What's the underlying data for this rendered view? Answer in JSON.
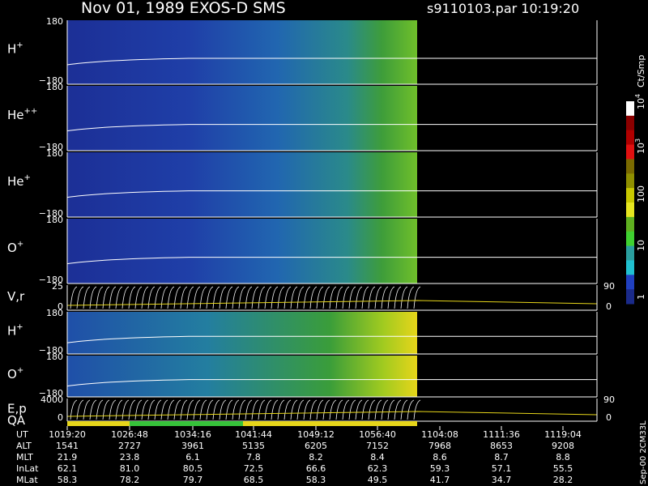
{
  "header": {
    "title": "Nov 01, 1989    EXOS-D SMS",
    "file": "s9110103.par  10:19:20"
  },
  "panels": [
    {
      "label": "H",
      "sup": "+",
      "top": "180",
      "bottom": "−180"
    },
    {
      "label": "He",
      "sup": "++",
      "top": "180",
      "bottom": "−180"
    },
    {
      "label": "He",
      "sup": "+",
      "top": "180",
      "bottom": "−180"
    },
    {
      "label": "O",
      "sup": "+",
      "top": "180",
      "bottom": "−180"
    },
    {
      "label": "V,r",
      "top": "25",
      "bottom": "0",
      "right_top": "90",
      "right_bottom": "0"
    },
    {
      "label": "H",
      "sup": "+",
      "top": "180",
      "bottom": "−180"
    },
    {
      "label": "O",
      "sup": "+",
      "top": "180",
      "bottom": "−180"
    },
    {
      "label": "E,p",
      "top": "4000",
      "bottom": "0",
      "right_top": "90",
      "right_bottom": "0"
    }
  ],
  "qa_label": "QA",
  "colorbar": {
    "unit": "Ct/Smp",
    "labels": [
      {
        "base": "10",
        "exp": "4"
      },
      {
        "base": "10",
        "exp": "3"
      },
      {
        "base": "100"
      },
      {
        "base": "10"
      },
      {
        "base": "1"
      }
    ]
  },
  "table": {
    "rows": [
      {
        "label": "UT",
        "values": [
          "1019:20",
          "1026:48",
          "1034:16",
          "1041:44",
          "1049:12",
          "1056:40",
          "1104:08",
          "1111:36",
          "1119:04"
        ]
      },
      {
        "label": "ALT",
        "values": [
          "1541",
          "2727",
          "3961",
          "5135",
          "6205",
          "7152",
          "7968",
          "8653",
          "9208"
        ]
      },
      {
        "label": "MLT",
        "values": [
          "21.9",
          "23.8",
          "6.1",
          "7.8",
          "8.2",
          "8.4",
          "8.6",
          "8.7",
          "8.8"
        ]
      },
      {
        "label": "InLat",
        "values": [
          "62.1",
          "81.0",
          "80.5",
          "72.5",
          "66.6",
          "62.3",
          "59.3",
          "57.1",
          "55.5"
        ]
      },
      {
        "label": "MLat",
        "values": [
          "58.3",
          "78.2",
          "79.7",
          "68.5",
          "58.3",
          "49.5",
          "41.7",
          "34.7",
          "28.2"
        ]
      }
    ]
  },
  "footer": "Sep-00  2CM33L"
}
